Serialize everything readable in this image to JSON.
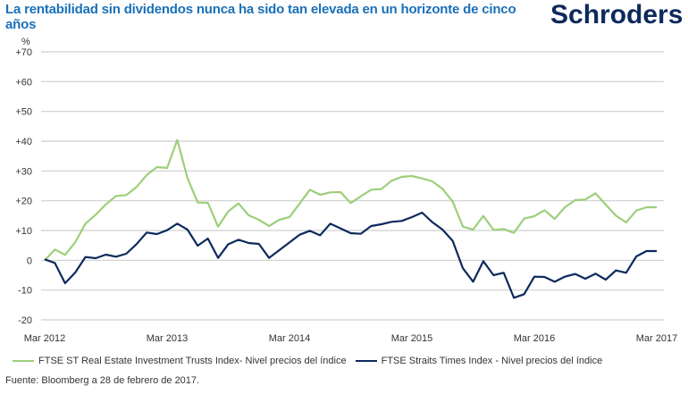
{
  "title": "La rentabilidad sin dividendos nunca ha sido tan elevada en un horizonte de cinco años",
  "logo": "Schroders",
  "source": "Fuente: Bloomberg a 28 de febrero de 2017.",
  "chart_data": {
    "type": "line",
    "ylabel": "%",
    "ylim": [
      -20,
      70
    ],
    "yticks": [
      -20,
      -10,
      0,
      10,
      20,
      30,
      40,
      50,
      60,
      70
    ],
    "ytick_labels": [
      "-20",
      "-10",
      "0",
      "+10",
      "+20",
      "+30",
      "+40",
      "+50",
      "+60",
      "+70"
    ],
    "xtick_labels": [
      "Mar 2012",
      "Mar 2013",
      "Mar 2014",
      "Mar 2015",
      "Mar 2016",
      "Mar 2017"
    ],
    "x_start": "Mar 2012",
    "x_end": "Mar 2017",
    "x_frequency": "monthly",
    "grid": true,
    "legend_position": "bottom",
    "series": [
      {
        "name": "FTSE ST Real Estate Investment Trusts Index- Nivel precios del índice",
        "color": "#9dcf7b",
        "values": [
          0,
          3.6,
          1.8,
          6.1,
          12.3,
          15.3,
          18.8,
          21.6,
          21.9,
          24.6,
          28.6,
          31.3,
          31,
          40.4,
          27.6,
          19.4,
          19.3,
          11.3,
          16.4,
          19.1,
          15.1,
          13.6,
          11.5,
          13.6,
          14.5,
          19.1,
          23.7,
          22,
          22.8,
          22.9,
          19.2,
          21.5,
          23.7,
          23.9,
          26.7,
          28,
          28.3,
          27.5,
          26.5,
          24,
          19.7,
          11.3,
          10.3,
          14.9,
          10.2,
          10.5,
          9.2,
          14,
          14.8,
          16.8,
          13.9,
          17.8,
          20.2,
          20.4,
          22.5,
          18.7,
          15,
          12.7,
          16.7,
          17.8,
          17.8
        ]
      },
      {
        "name": "FTSE Straits Times Index - Nivel precios del índice",
        "color": "#0d2a5c",
        "values": [
          0.3,
          -0.9,
          -7.7,
          -4.1,
          1.1,
          0.7,
          1.9,
          1.2,
          2.2,
          5.4,
          9.3,
          8.8,
          10.1,
          12.3,
          10.3,
          4.9,
          7.3,
          0.8,
          5.4,
          6.9,
          5.8,
          5.5,
          0.8,
          3.4,
          6,
          8.6,
          9.9,
          8.4,
          12.3,
          10.7,
          9.1,
          8.9,
          11.5,
          12.1,
          12.9,
          13.2,
          14.5,
          16,
          12.8,
          10.3,
          6.5,
          -2.7,
          -7.2,
          -0.3,
          -5,
          -4.2,
          -12.6,
          -11.4,
          -5.5,
          -5.6,
          -7.2,
          -5.5,
          -4.6,
          -6.2,
          -4.5,
          -6.5,
          -3.4,
          -4.2,
          1.3,
          3.1,
          3.1
        ]
      }
    ]
  }
}
